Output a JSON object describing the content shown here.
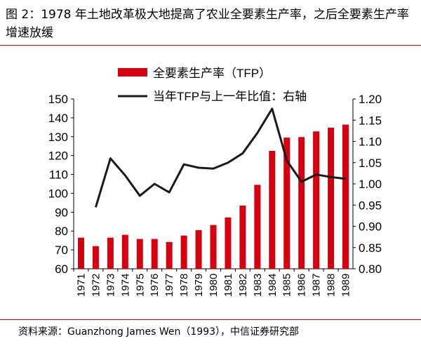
{
  "title": "图 2：1978 年土地改革极大地提高了农业全要素生产率，之后全要素生产率增速放缓",
  "source": "资料来源：Guanzhong James Wen（1993），中信证券研究部",
  "colors": {
    "bar": "#d7000f",
    "line": "#1a1a1a",
    "rule": "#c00000"
  },
  "chart_data": {
    "type": "bar+line",
    "categories": [
      "1971",
      "1972",
      "1973",
      "1974",
      "1975",
      "1976",
      "1977",
      "1978",
      "1979",
      "1980",
      "1981",
      "1982",
      "1983",
      "1984",
      "1985",
      "1986",
      "1987",
      "1988",
      "1989"
    ],
    "series": [
      {
        "name": "全要素生产率（TFP）",
        "type": "bar",
        "axis": "left",
        "values": [
          76.5,
          72,
          76.5,
          78,
          75.8,
          75.8,
          74.2,
          77.6,
          80.5,
          83.2,
          87.2,
          93.5,
          104.5,
          122.5,
          129.5,
          129.8,
          132.8,
          134.8,
          136.4
        ]
      },
      {
        "name": "当年TFP与上一年比值：右轴",
        "type": "line",
        "axis": "right",
        "values": [
          null,
          0.945,
          1.06,
          1.02,
          0.972,
          1.0,
          0.98,
          1.046,
          1.038,
          1.036,
          1.05,
          1.072,
          1.12,
          1.177,
          1.055,
          1.005,
          1.022,
          1.016,
          1.012
        ]
      }
    ],
    "left_axis": {
      "ylim": [
        60,
        150
      ],
      "ticks": [
        "60",
        "70",
        "80",
        "90",
        "100",
        "110",
        "120",
        "130",
        "140",
        "150"
      ]
    },
    "right_axis": {
      "ylim": [
        0.8,
        1.2
      ],
      "ticks": [
        "0.80",
        "0.85",
        "0.90",
        "0.95",
        "1.00",
        "1.05",
        "1.10",
        "1.15",
        "1.20"
      ]
    },
    "legend_placement": "top",
    "grid": false
  }
}
